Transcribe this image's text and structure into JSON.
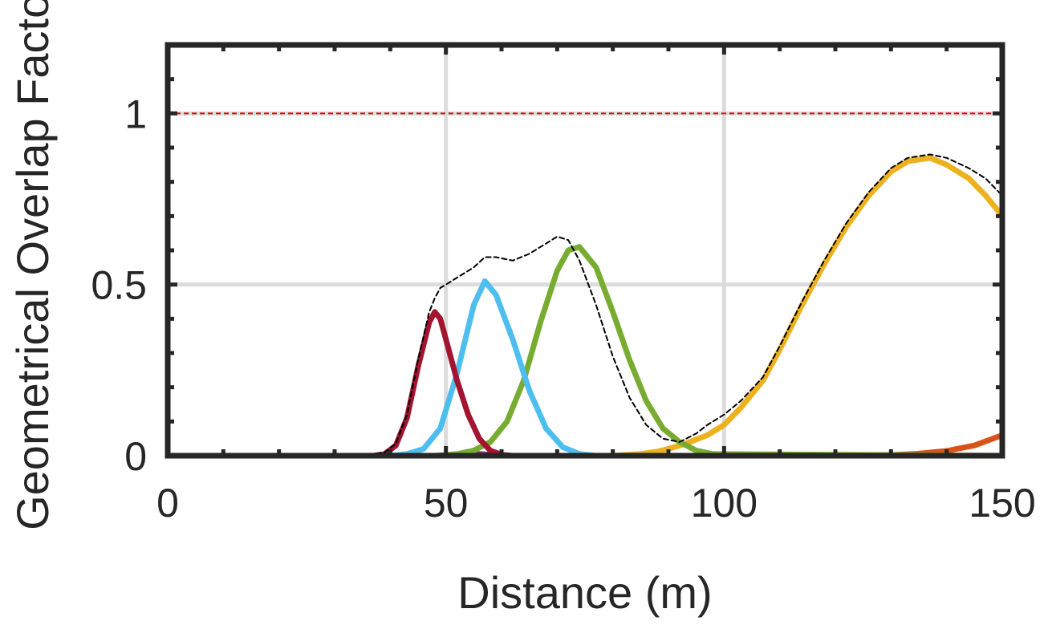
{
  "chart_data": {
    "type": "line",
    "title": "",
    "xlabel": "Distance (m)",
    "ylabel": "Geometrical Overlap Factor",
    "xlim": [
      0,
      150
    ],
    "ylim": [
      0,
      1.2
    ],
    "xticks": [
      0,
      50,
      100,
      150
    ],
    "xtick_labels": [
      "0",
      "50",
      "100",
      "150"
    ],
    "yticks": [
      0,
      0.5,
      1
    ],
    "ytick_labels": [
      "0",
      "0.5",
      "1"
    ],
    "grid": true,
    "reference_line": {
      "y": 1,
      "color": "#e8000b",
      "style": "dashed"
    },
    "series": [
      {
        "color": "#d95319",
        "style": "solid",
        "x": [
          0,
          120,
          130,
          135,
          140,
          145,
          150
        ],
        "y": [
          0,
          0,
          0.002,
          0.006,
          0.014,
          0.03,
          0.06
        ]
      },
      {
        "color": "#7e2f8e",
        "style": "solid",
        "x": [
          0,
          49,
          52,
          55,
          58,
          61,
          150
        ],
        "y": [
          0,
          0,
          0.003,
          0.006,
          0.003,
          0,
          0
        ]
      },
      {
        "color": "#edb120",
        "style": "solid",
        "x": [
          0,
          80,
          85,
          88,
          90,
          93,
          97,
          100,
          103,
          107,
          110,
          114,
          118,
          122,
          126,
          130,
          133,
          137,
          140,
          144,
          147,
          150
        ],
        "y": [
          0,
          0,
          0.005,
          0.012,
          0.02,
          0.035,
          0.06,
          0.09,
          0.14,
          0.22,
          0.31,
          0.44,
          0.56,
          0.67,
          0.76,
          0.83,
          0.86,
          0.87,
          0.85,
          0.81,
          0.76,
          0.7
        ]
      },
      {
        "color": "#77ac30",
        "style": "solid",
        "x": [
          0,
          48,
          52,
          55,
          58,
          61,
          64,
          67,
          70,
          72,
          74,
          77,
          80,
          83,
          86,
          89,
          92,
          95,
          98,
          150
        ],
        "y": [
          0,
          0,
          0.005,
          0.015,
          0.04,
          0.1,
          0.22,
          0.39,
          0.54,
          0.6,
          0.61,
          0.55,
          0.42,
          0.28,
          0.16,
          0.08,
          0.04,
          0.015,
          0.005,
          0
        ]
      },
      {
        "color": "#4dbeee",
        "style": "solid",
        "x": [
          0,
          40,
          43,
          46,
          49,
          52,
          55,
          57,
          59,
          62,
          65,
          68,
          71,
          74,
          77,
          150
        ],
        "y": [
          0,
          0,
          0.005,
          0.02,
          0.08,
          0.24,
          0.44,
          0.51,
          0.47,
          0.34,
          0.19,
          0.08,
          0.025,
          0.005,
          0,
          0
        ]
      },
      {
        "color": "#a2142f",
        "style": "solid",
        "x": [
          0,
          37,
          39,
          41,
          43,
          45,
          47,
          48,
          49,
          50,
          52,
          54,
          56,
          58,
          60,
          62,
          150
        ],
        "y": [
          0,
          0,
          0.005,
          0.03,
          0.11,
          0.26,
          0.39,
          0.42,
          0.4,
          0.34,
          0.22,
          0.12,
          0.05,
          0.015,
          0.003,
          0,
          0
        ]
      },
      {
        "color": "#000000",
        "style": "dashed",
        "x": [
          0,
          37,
          39,
          41,
          43,
          45,
          47,
          48,
          49,
          50,
          52,
          55,
          57,
          59,
          62,
          65,
          68,
          70,
          72,
          74,
          77,
          80,
          83,
          86,
          89,
          92,
          95,
          97,
          100,
          103,
          107,
          110,
          114,
          118,
          122,
          126,
          130,
          133,
          137,
          140,
          144,
          147,
          150
        ],
        "y": [
          0.005,
          0.005,
          0.01,
          0.035,
          0.12,
          0.28,
          0.42,
          0.46,
          0.49,
          0.5,
          0.52,
          0.55,
          0.58,
          0.58,
          0.57,
          0.59,
          0.62,
          0.64,
          0.63,
          0.57,
          0.44,
          0.29,
          0.17,
          0.09,
          0.05,
          0.04,
          0.065,
          0.09,
          0.12,
          0.16,
          0.23,
          0.32,
          0.45,
          0.57,
          0.68,
          0.77,
          0.84,
          0.87,
          0.88,
          0.87,
          0.84,
          0.81,
          0.76
        ]
      }
    ]
  }
}
